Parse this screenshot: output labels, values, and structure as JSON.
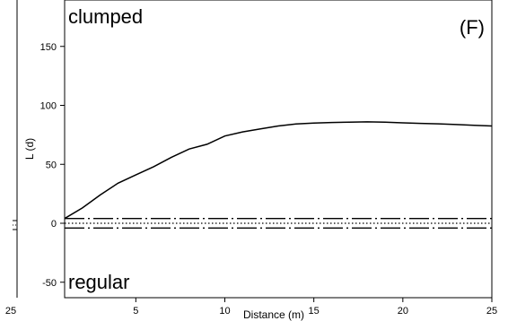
{
  "chart_data": {
    "type": "line",
    "panel_label": "(F)",
    "annotation_top": "clumped",
    "annotation_bottom": "regular",
    "xlabel": "Distance (m)",
    "ylabel": "L (d)",
    "xlim": [
      1,
      25
    ],
    "ylim": [
      -55,
      175
    ],
    "xticks": [
      5,
      10,
      15,
      20,
      25
    ],
    "yticks": [
      -50,
      0,
      50,
      100,
      150
    ],
    "left_panel_edge": {
      "tick_labels": [
        "25"
      ]
    },
    "series": [
      {
        "style": "solid",
        "x": [
          1,
          2,
          3,
          4,
          5,
          6,
          7,
          8,
          9,
          10,
          11,
          12,
          13,
          14,
          15,
          16,
          17,
          18,
          19,
          20,
          21,
          22,
          23,
          24,
          25
        ],
        "y": [
          4,
          13,
          24,
          34,
          41,
          48,
          56,
          63,
          67,
          74,
          77.5,
          80,
          82.5,
          84.2,
          85,
          85.5,
          85.8,
          86,
          85.7,
          85.2,
          84.7,
          84.3,
          83.7,
          83.1,
          82.5
        ]
      },
      {
        "style": "dash-dot",
        "x": [
          1,
          25
        ],
        "y": [
          4,
          4
        ]
      },
      {
        "style": "dash-dot",
        "x": [
          1,
          25
        ],
        "y": [
          -4,
          -4
        ]
      },
      {
        "style": "dotted",
        "x": [
          1,
          25
        ],
        "y": [
          0,
          0
        ]
      }
    ]
  }
}
